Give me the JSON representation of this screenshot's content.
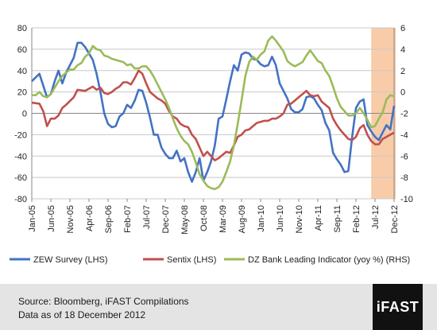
{
  "chart_data": {
    "type": "line",
    "title": "",
    "xlabel": "",
    "ylabel": "",
    "ylim_left": [
      -80,
      80
    ],
    "ylim_right": [
      -10,
      6
    ],
    "left_ticks": [
      80,
      60,
      40,
      20,
      0,
      -20,
      -40,
      -60,
      -80
    ],
    "right_ticks": [
      6,
      4,
      2,
      0,
      -2,
      -4,
      -6,
      -8,
      -10
    ],
    "x_start": "2005-01",
    "x_end": "2012-12",
    "x_ticks": [
      "Jan-05",
      "Jun-05",
      "Nov-05",
      "Apr-06",
      "Sep-06",
      "Feb-07",
      "Jul-07",
      "Dec-07",
      "May-08",
      "Oct-08",
      "Mar-09",
      "Aug-09",
      "Jan-10",
      "Jun-10",
      "Nov-10",
      "Apr-11",
      "Sep-11",
      "Feb-12",
      "Jul-12",
      "Dec-12"
    ],
    "highlight": {
      "from": "2012-06",
      "to": "2012-12",
      "color": "#f8cca8"
    },
    "legend_position": "bottom",
    "series": [
      {
        "name": "ZEW Survey (LHS)",
        "axis": "left",
        "color": "#4472c4",
        "points": [
          [
            "2005-01",
            30
          ],
          [
            "2005-03",
            37
          ],
          [
            "2005-05",
            15
          ],
          [
            "2005-06",
            18
          ],
          [
            "2005-07",
            30
          ],
          [
            "2005-08",
            40
          ],
          [
            "2005-09",
            28
          ],
          [
            "2005-10",
            38
          ],
          [
            "2005-12",
            52
          ],
          [
            "2006-01",
            66
          ],
          [
            "2006-02",
            66
          ],
          [
            "2006-03",
            62
          ],
          [
            "2006-05",
            50
          ],
          [
            "2006-06",
            37
          ],
          [
            "2006-07",
            20
          ],
          [
            "2006-08",
            0
          ],
          [
            "2006-09",
            -10
          ],
          [
            "2006-10",
            -13
          ],
          [
            "2006-11",
            -12
          ],
          [
            "2006-12",
            -3
          ],
          [
            "2007-01",
            0
          ],
          [
            "2007-02",
            8
          ],
          [
            "2007-03",
            5
          ],
          [
            "2007-04",
            12
          ],
          [
            "2007-05",
            22
          ],
          [
            "2007-06",
            21
          ],
          [
            "2007-07",
            10
          ],
          [
            "2007-08",
            -4
          ],
          [
            "2007-09",
            -20
          ],
          [
            "2007-10",
            -20
          ],
          [
            "2007-11",
            -32
          ],
          [
            "2007-12",
            -38
          ],
          [
            "2008-01",
            -42
          ],
          [
            "2008-02",
            -42
          ],
          [
            "2008-03",
            -35
          ],
          [
            "2008-04",
            -45
          ],
          [
            "2008-05",
            -42
          ],
          [
            "2008-06",
            -55
          ],
          [
            "2008-07",
            -64
          ],
          [
            "2008-08",
            -55
          ],
          [
            "2008-09",
            -42
          ],
          [
            "2008-10",
            -63
          ],
          [
            "2008-11",
            -55
          ],
          [
            "2008-12",
            -45
          ],
          [
            "2009-01",
            -30
          ],
          [
            "2009-02",
            -5
          ],
          [
            "2009-03",
            -3
          ],
          [
            "2009-04",
            13
          ],
          [
            "2009-05",
            30
          ],
          [
            "2009-06",
            45
          ],
          [
            "2009-07",
            40
          ],
          [
            "2009-08",
            55
          ],
          [
            "2009-09",
            57
          ],
          [
            "2009-10",
            56
          ],
          [
            "2009-11",
            51
          ],
          [
            "2009-12",
            50
          ],
          [
            "2010-01",
            46
          ],
          [
            "2010-02",
            44
          ],
          [
            "2010-03",
            45
          ],
          [
            "2010-04",
            53
          ],
          [
            "2010-05",
            45
          ],
          [
            "2010-06",
            28
          ],
          [
            "2010-07",
            21
          ],
          [
            "2010-08",
            14
          ],
          [
            "2010-09",
            4
          ],
          [
            "2010-10",
            1
          ],
          [
            "2010-11",
            1
          ],
          [
            "2010-12",
            4
          ],
          [
            "2011-01",
            15
          ],
          [
            "2011-02",
            16
          ],
          [
            "2011-03",
            14
          ],
          [
            "2011-04",
            8
          ],
          [
            "2011-05",
            3
          ],
          [
            "2011-06",
            -9
          ],
          [
            "2011-07",
            -16
          ],
          [
            "2011-08",
            -37
          ],
          [
            "2011-09",
            -43
          ],
          [
            "2011-10",
            -48
          ],
          [
            "2011-11",
            -55
          ],
          [
            "2011-12",
            -54
          ],
          [
            "2012-01",
            -22
          ],
          [
            "2012-02",
            5
          ],
          [
            "2012-03",
            11
          ],
          [
            "2012-04",
            13
          ],
          [
            "2012-05",
            -11
          ],
          [
            "2012-06",
            -17
          ],
          [
            "2012-07",
            -22
          ],
          [
            "2012-08",
            -25
          ],
          [
            "2012-09",
            -18
          ],
          [
            "2012-10",
            -11
          ],
          [
            "2012-11",
            -15
          ],
          [
            "2012-12",
            7
          ]
        ]
      },
      {
        "name": "Sentix (LHS)",
        "axis": "left",
        "color": "#c0504d",
        "points": [
          [
            "2005-01",
            10
          ],
          [
            "2005-03",
            9
          ],
          [
            "2005-04",
            2
          ],
          [
            "2005-05",
            -12
          ],
          [
            "2005-06",
            -5
          ],
          [
            "2005-07",
            -5
          ],
          [
            "2005-08",
            -2
          ],
          [
            "2005-09",
            5
          ],
          [
            "2005-10",
            8
          ],
          [
            "2005-12",
            15
          ],
          [
            "2006-01",
            22
          ],
          [
            "2006-03",
            21
          ],
          [
            "2006-05",
            25
          ],
          [
            "2006-06",
            22
          ],
          [
            "2006-07",
            24
          ],
          [
            "2006-08",
            19
          ],
          [
            "2006-09",
            18
          ],
          [
            "2006-10",
            20
          ],
          [
            "2006-11",
            23
          ],
          [
            "2006-12",
            25
          ],
          [
            "2007-01",
            29
          ],
          [
            "2007-02",
            29
          ],
          [
            "2007-03",
            27
          ],
          [
            "2007-04",
            33
          ],
          [
            "2007-05",
            40
          ],
          [
            "2007-06",
            37
          ],
          [
            "2007-07",
            28
          ],
          [
            "2007-08",
            20
          ],
          [
            "2007-09",
            17
          ],
          [
            "2007-10",
            14
          ],
          [
            "2007-11",
            12
          ],
          [
            "2007-12",
            9
          ],
          [
            "2008-01",
            2
          ],
          [
            "2008-02",
            -3
          ],
          [
            "2008-03",
            -5
          ],
          [
            "2008-04",
            -10
          ],
          [
            "2008-05",
            -12
          ],
          [
            "2008-06",
            -13
          ],
          [
            "2008-07",
            -20
          ],
          [
            "2008-08",
            -24
          ],
          [
            "2008-09",
            -32
          ],
          [
            "2008-10",
            -40
          ],
          [
            "2008-11",
            -36
          ],
          [
            "2008-12",
            -40
          ],
          [
            "2009-01",
            -44
          ],
          [
            "2009-02",
            -42
          ],
          [
            "2009-03",
            -39
          ],
          [
            "2009-04",
            -36
          ],
          [
            "2009-05",
            -37
          ],
          [
            "2009-06",
            -30
          ],
          [
            "2009-07",
            -22
          ],
          [
            "2009-08",
            -20
          ],
          [
            "2009-09",
            -16
          ],
          [
            "2009-10",
            -15
          ],
          [
            "2009-11",
            -12
          ],
          [
            "2009-12",
            -9
          ],
          [
            "2010-01",
            -8
          ],
          [
            "2010-02",
            -7
          ],
          [
            "2010-03",
            -7
          ],
          [
            "2010-04",
            -5
          ],
          [
            "2010-05",
            -5
          ],
          [
            "2010-06",
            -3
          ],
          [
            "2010-07",
            0
          ],
          [
            "2010-08",
            8
          ],
          [
            "2010-09",
            9
          ],
          [
            "2010-10",
            12
          ],
          [
            "2010-11",
            15
          ],
          [
            "2010-12",
            18
          ],
          [
            "2011-01",
            21
          ],
          [
            "2011-02",
            17
          ],
          [
            "2011-03",
            16
          ],
          [
            "2011-04",
            17
          ],
          [
            "2011-05",
            11
          ],
          [
            "2011-06",
            8
          ],
          [
            "2011-07",
            5
          ],
          [
            "2011-08",
            -5
          ],
          [
            "2011-09",
            -11
          ],
          [
            "2011-10",
            -16
          ],
          [
            "2011-11",
            -20
          ],
          [
            "2011-12",
            -24
          ],
          [
            "2012-01",
            -25
          ],
          [
            "2012-02",
            -22
          ],
          [
            "2012-03",
            -14
          ],
          [
            "2012-04",
            -11
          ],
          [
            "2012-05",
            -20
          ],
          [
            "2012-06",
            -26
          ],
          [
            "2012-07",
            -29
          ],
          [
            "2012-08",
            -29
          ],
          [
            "2012-09",
            -24
          ],
          [
            "2012-10",
            -22
          ],
          [
            "2012-11",
            -20
          ],
          [
            "2012-12",
            -18
          ]
        ]
      },
      {
        "name": "DZ Bank Leading Indicator (yoy %) (RHS)",
        "axis": "right",
        "color": "#9bbb59",
        "points": [
          [
            "2005-01",
            -0.3
          ],
          [
            "2005-02",
            -0.3
          ],
          [
            "2005-03",
            0.0
          ],
          [
            "2005-04",
            -0.4
          ],
          [
            "2005-05",
            -0.5
          ],
          [
            "2005-06",
            -0.2
          ],
          [
            "2005-07",
            0.4
          ],
          [
            "2005-08",
            1.0
          ],
          [
            "2005-09",
            1.5
          ],
          [
            "2005-10",
            1.8
          ],
          [
            "2005-11",
            2.1
          ],
          [
            "2005-12",
            2.1
          ],
          [
            "2006-01",
            2.5
          ],
          [
            "2006-02",
            2.7
          ],
          [
            "2006-03",
            3.3
          ],
          [
            "2006-04",
            3.6
          ],
          [
            "2006-05",
            4.3
          ],
          [
            "2006-06",
            4.0
          ],
          [
            "2006-07",
            3.9
          ],
          [
            "2006-08",
            3.4
          ],
          [
            "2006-09",
            3.3
          ],
          [
            "2006-10",
            3.1
          ],
          [
            "2006-11",
            3.0
          ],
          [
            "2006-12",
            2.9
          ],
          [
            "2007-01",
            2.8
          ],
          [
            "2007-02",
            2.5
          ],
          [
            "2007-03",
            2.6
          ],
          [
            "2007-04",
            2.2
          ],
          [
            "2007-05",
            2.2
          ],
          [
            "2007-06",
            2.4
          ],
          [
            "2007-07",
            2.4
          ],
          [
            "2007-08",
            2.0
          ],
          [
            "2007-09",
            1.4
          ],
          [
            "2007-10",
            0.7
          ],
          [
            "2007-11",
            0.0
          ],
          [
            "2007-12",
            -0.7
          ],
          [
            "2008-01",
            -1.5
          ],
          [
            "2008-02",
            -2.5
          ],
          [
            "2008-03",
            -3.4
          ],
          [
            "2008-04",
            -4.1
          ],
          [
            "2008-05",
            -4.6
          ],
          [
            "2008-06",
            -4.9
          ],
          [
            "2008-07",
            -5.6
          ],
          [
            "2008-08",
            -6.6
          ],
          [
            "2008-09",
            -7.7
          ],
          [
            "2008-10",
            -8.3
          ],
          [
            "2008-11",
            -8.8
          ],
          [
            "2008-12",
            -9.0
          ],
          [
            "2009-01",
            -9.1
          ],
          [
            "2009-02",
            -8.9
          ],
          [
            "2009-03",
            -8.4
          ],
          [
            "2009-04",
            -7.5
          ],
          [
            "2009-05",
            -6.5
          ],
          [
            "2009-06",
            -5.0
          ],
          [
            "2009-07",
            -3.0
          ],
          [
            "2009-08",
            -0.8
          ],
          [
            "2009-09",
            1.5
          ],
          [
            "2009-10",
            2.8
          ],
          [
            "2009-11",
            3.3
          ],
          [
            "2009-12",
            3.0
          ],
          [
            "2010-01",
            3.5
          ],
          [
            "2010-02",
            3.8
          ],
          [
            "2010-03",
            4.8
          ],
          [
            "2010-04",
            5.2
          ],
          [
            "2010-05",
            4.8
          ],
          [
            "2010-06",
            4.3
          ],
          [
            "2010-07",
            3.8
          ],
          [
            "2010-08",
            2.9
          ],
          [
            "2010-09",
            2.6
          ],
          [
            "2010-10",
            2.4
          ],
          [
            "2010-11",
            2.6
          ],
          [
            "2010-12",
            2.8
          ],
          [
            "2011-01",
            3.4
          ],
          [
            "2011-02",
            3.9
          ],
          [
            "2011-03",
            3.4
          ],
          [
            "2011-04",
            2.9
          ],
          [
            "2011-05",
            2.7
          ],
          [
            "2011-06",
            2.0
          ],
          [
            "2011-07",
            1.5
          ],
          [
            "2011-08",
            0.5
          ],
          [
            "2011-09",
            -0.6
          ],
          [
            "2011-10",
            -1.4
          ],
          [
            "2011-11",
            -1.8
          ],
          [
            "2011-12",
            -2.2
          ],
          [
            "2012-01",
            -2.2
          ],
          [
            "2012-02",
            -2.0
          ],
          [
            "2012-03",
            -1.5
          ],
          [
            "2012-04",
            -2.0
          ],
          [
            "2012-05",
            -2.6
          ],
          [
            "2012-06",
            -3.3
          ],
          [
            "2012-07",
            -3.2
          ],
          [
            "2012-08",
            -2.5
          ],
          [
            "2012-09",
            -1.9
          ],
          [
            "2012-10",
            -0.7
          ],
          [
            "2012-11",
            -0.3
          ],
          [
            "2012-12",
            -0.4
          ]
        ]
      }
    ]
  },
  "footer": {
    "source": "Source: Bloomberg, iFAST Compilations",
    "date_note": "Data as of 18 December 2012",
    "logo": "iFAST"
  }
}
